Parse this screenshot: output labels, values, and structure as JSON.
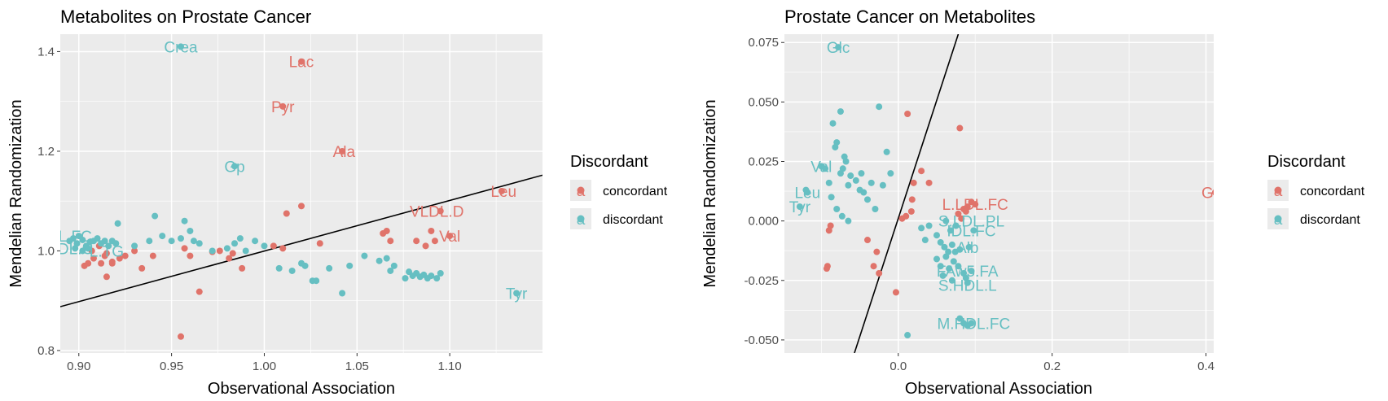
{
  "colors": {
    "concordant": "#E0736A",
    "discordant": "#66BFC2",
    "panel": "#EBEBEB",
    "grid": "#FFFFFF",
    "line": "#000000"
  },
  "legend": {
    "title": "Discordant",
    "items": [
      "concordant",
      "discordant"
    ]
  },
  "chart_data": [
    {
      "type": "scatter",
      "title": "Metabolites on Prostate Cancer",
      "xlabel": "Observational Association",
      "ylabel": "Mendelian Randomization",
      "xlim": [
        0.89,
        1.15
      ],
      "ylim": [
        0.795,
        1.435
      ],
      "xticks": [
        0.9,
        0.95,
        1.0,
        1.05,
        1.1
      ],
      "xtick_labels": [
        "0.90",
        "0.95",
        "1.00",
        "1.05",
        "1.10"
      ],
      "yticks": [
        0.8,
        1.0,
        1.2,
        1.4
      ],
      "ytick_labels": [
        "0.8",
        "1.0",
        "1.2",
        "1.4"
      ],
      "grid": true,
      "legend_position": "right",
      "line": {
        "x": [
          0.89,
          1.15
        ],
        "y": [
          0.888,
          1.152
        ]
      },
      "labels": [
        {
          "text": "Crea",
          "x": 0.955,
          "y": 1.41,
          "group": "discordant"
        },
        {
          "text": "Lac",
          "x": 1.02,
          "y": 1.38,
          "group": "concordant"
        },
        {
          "text": "Pyr",
          "x": 1.01,
          "y": 1.29,
          "group": "concordant"
        },
        {
          "text": "Ala",
          "x": 1.043,
          "y": 1.2,
          "group": "concordant"
        },
        {
          "text": "Gp",
          "x": 0.984,
          "y": 1.17,
          "group": "discordant"
        },
        {
          "text": "Leu",
          "x": 1.129,
          "y": 1.12,
          "group": "concordant"
        },
        {
          "text": "VLDL.D",
          "x": 1.093,
          "y": 1.08,
          "group": "concordant"
        },
        {
          "text": "Val",
          "x": 1.1,
          "y": 1.03,
          "group": "concordant"
        },
        {
          "text": "Tyr",
          "x": 1.136,
          "y": 0.915,
          "group": "discordant"
        },
        {
          "text": "DL.FC",
          "x": 0.895,
          "y": 1.03,
          "group": "discordant"
        },
        {
          "text": "IDL.C",
          "x": 0.897,
          "y": 1.005,
          "group": "discordant"
        },
        {
          "text": "L.TG",
          "x": 0.915,
          "y": 1.0,
          "group": "discordant"
        }
      ],
      "series": [
        {
          "name": "concordant",
          "points": [
            [
              0.955,
              0.828
            ],
            [
              0.965,
              0.918
            ],
            [
              0.915,
              0.948
            ],
            [
              0.918,
              0.975
            ],
            [
              0.922,
              0.985
            ],
            [
              0.925,
              0.99
            ],
            [
              0.93,
              1.0
            ],
            [
              0.934,
              0.965
            ],
            [
              0.94,
              0.99
            ],
            [
              0.957,
              1.005
            ],
            [
              0.96,
              0.99
            ],
            [
              0.972,
              0.998
            ],
            [
              0.976,
              1.0
            ],
            [
              0.981,
              0.985
            ],
            [
              0.983,
              0.995
            ],
            [
              0.988,
              0.965
            ],
            [
              1.005,
              1.01
            ],
            [
              1.01,
              1.005
            ],
            [
              1.012,
              1.075
            ],
            [
              1.02,
              1.09
            ],
            [
              1.03,
              1.015
            ],
            [
              1.042,
              1.2
            ],
            [
              1.064,
              1.035
            ],
            [
              1.066,
              1.04
            ],
            [
              1.068,
              1.02
            ],
            [
              1.082,
              1.02
            ],
            [
              1.087,
              1.01
            ],
            [
              1.09,
              1.04
            ],
            [
              1.092,
              1.02
            ],
            [
              1.01,
              1.29
            ],
            [
              1.02,
              1.38
            ],
            [
              1.095,
              1.08
            ],
            [
              1.128,
              1.12
            ],
            [
              1.1,
              1.03
            ],
            [
              0.905,
              0.975
            ],
            [
              0.908,
              0.985
            ],
            [
              0.912,
              0.975
            ],
            [
              0.915,
              0.995
            ],
            [
              0.918,
              0.978
            ],
            [
              0.907,
              1.0
            ],
            [
              0.911,
              1.01
            ],
            [
              0.914,
              0.99
            ],
            [
              0.903,
              0.97
            ]
          ]
        },
        {
          "name": "discordant",
          "points": [
            [
              0.955,
              1.41
            ],
            [
              0.984,
              1.17
            ],
            [
              0.921,
              1.055
            ],
            [
              0.93,
              1.01
            ],
            [
              0.938,
              1.02
            ],
            [
              0.941,
              1.07
            ],
            [
              0.945,
              1.03
            ],
            [
              0.95,
              1.02
            ],
            [
              0.955,
              1.025
            ],
            [
              0.957,
              1.06
            ],
            [
              0.96,
              1.04
            ],
            [
              0.962,
              1.02
            ],
            [
              0.965,
              1.015
            ],
            [
              0.972,
              1.0
            ],
            [
              0.98,
              1.005
            ],
            [
              0.984,
              1.015
            ],
            [
              0.987,
              1.025
            ],
            [
              0.99,
              1.0
            ],
            [
              0.995,
              1.02
            ],
            [
              1.0,
              1.01
            ],
            [
              1.008,
              0.965
            ],
            [
              1.015,
              0.96
            ],
            [
              1.02,
              0.975
            ],
            [
              1.022,
              0.97
            ],
            [
              1.026,
              0.94
            ],
            [
              1.028,
              0.94
            ],
            [
              1.035,
              0.965
            ],
            [
              1.042,
              0.915
            ],
            [
              1.046,
              0.97
            ],
            [
              1.054,
              0.99
            ],
            [
              1.062,
              0.98
            ],
            [
              1.066,
              0.985
            ],
            [
              1.068,
              0.96
            ],
            [
              1.07,
              0.97
            ],
            [
              1.076,
              0.945
            ],
            [
              1.078,
              0.958
            ],
            [
              1.08,
              0.95
            ],
            [
              1.082,
              0.955
            ],
            [
              1.084,
              0.948
            ],
            [
              1.086,
              0.952
            ],
            [
              1.088,
              0.945
            ],
            [
              1.09,
              0.95
            ],
            [
              1.093,
              0.945
            ],
            [
              1.095,
              0.955
            ],
            [
              1.136,
              0.915
            ],
            [
              0.895,
              1.02
            ],
            [
              0.897,
              1.025
            ],
            [
              0.899,
              1.015
            ],
            [
              0.9,
              1.03
            ],
            [
              0.902,
              1.022
            ],
            [
              0.904,
              1.01
            ],
            [
              0.906,
              1.018
            ],
            [
              0.908,
              1.02
            ],
            [
              0.91,
              1.025
            ],
            [
              0.912,
              1.015
            ],
            [
              0.914,
              1.02
            ],
            [
              0.916,
              1.01
            ],
            [
              0.918,
              1.02
            ],
            [
              0.92,
              1.015
            ],
            [
              0.898,
              1.005
            ],
            [
              0.902,
              1.0
            ],
            [
              0.905,
              1.005
            ]
          ]
        }
      ]
    },
    {
      "type": "scatter",
      "title": "Prostate Cancer on Metabolites",
      "xlabel": "Observational Association",
      "ylabel": "Mendelian Randomization",
      "xlim": [
        -0.148,
        0.41
      ],
      "ylim": [
        -0.0555,
        0.0785
      ],
      "xticks": [
        0.0,
        0.2,
        0.4
      ],
      "xtick_labels": [
        "0.0",
        "0.2",
        "0.4"
      ],
      "yticks": [
        -0.05,
        -0.025,
        0.0,
        0.025,
        0.05,
        0.075
      ],
      "ytick_labels": [
        "-0.050",
        "-0.025",
        "0.000",
        "0.025",
        "0.050",
        "0.075"
      ],
      "grid": true,
      "legend_position": "right",
      "line": {
        "x": [
          -0.057,
          0.078
        ],
        "y": [
          -0.0555,
          0.0785
        ]
      },
      "labels": [
        {
          "text": "Glc",
          "x": -0.078,
          "y": 0.073,
          "group": "discordant"
        },
        {
          "text": "Val",
          "x": -0.1,
          "y": 0.023,
          "group": "discordant"
        },
        {
          "text": "Leu",
          "x": -0.118,
          "y": 0.012,
          "group": "discordant"
        },
        {
          "text": "Tyr",
          "x": -0.128,
          "y": 0.006,
          "group": "discordant"
        },
        {
          "text": "Glol",
          "x": 0.412,
          "y": 0.012,
          "group": "concordant"
        },
        {
          "text": "L.LDL.FC",
          "x": 0.1,
          "y": 0.007,
          "group": "concordant"
        },
        {
          "text": "S.LDL.PL",
          "x": 0.095,
          "y": 0.0,
          "group": "discordant"
        },
        {
          "text": "IDL.FC",
          "x": 0.095,
          "y": -0.004,
          "group": "discordant"
        },
        {
          "text": "Alb",
          "x": 0.09,
          "y": -0.011,
          "group": "discordant"
        },
        {
          "text": "FAw5.FA",
          "x": 0.09,
          "y": -0.021,
          "group": "discordant"
        },
        {
          "text": "S.HDL.L",
          "x": 0.09,
          "y": -0.027,
          "group": "discordant"
        },
        {
          "text": "M.HDL.FC",
          "x": 0.098,
          "y": -0.043,
          "group": "discordant"
        }
      ],
      "series": [
        {
          "name": "concordant",
          "points": [
            [
              0.012,
              0.045
            ],
            [
              0.08,
              0.039
            ],
            [
              0.04,
              0.016
            ],
            [
              0.03,
              0.021
            ],
            [
              0.02,
              0.016
            ],
            [
              0.01,
              0.002
            ],
            [
              0.005,
              0.001
            ],
            [
              0.018,
              0.009
            ],
            [
              0.017,
              0.004
            ],
            [
              -0.088,
              -0.002
            ],
            [
              -0.09,
              -0.004
            ],
            [
              -0.092,
              -0.019
            ],
            [
              -0.093,
              -0.02
            ],
            [
              -0.04,
              -0.008
            ],
            [
              -0.028,
              -0.013
            ],
            [
              -0.032,
              -0.019
            ],
            [
              -0.025,
              -0.022
            ],
            [
              -0.003,
              -0.03
            ],
            [
              0.078,
              0.003
            ],
            [
              0.085,
              0.005
            ],
            [
              0.088,
              0.004
            ],
            [
              0.09,
              0.006
            ],
            [
              0.095,
              0.008
            ],
            [
              0.1,
              0.007
            ],
            [
              0.082,
              0.001
            ],
            [
              0.412,
              0.012
            ]
          ]
        },
        {
          "name": "discordant",
          "points": [
            [
              -0.078,
              0.073
            ],
            [
              -0.075,
              0.046
            ],
            [
              -0.085,
              0.041
            ],
            [
              -0.08,
              0.033
            ],
            [
              -0.082,
              0.031
            ],
            [
              -0.07,
              0.027
            ],
            [
              -0.068,
              0.025
            ],
            [
              -0.072,
              0.022
            ],
            [
              -0.075,
              0.02
            ],
            [
              -0.062,
              0.019
            ],
            [
              -0.065,
              0.015
            ],
            [
              -0.055,
              0.017
            ],
            [
              -0.05,
              0.013
            ],
            [
              -0.048,
              0.02
            ],
            [
              -0.045,
              0.012
            ],
            [
              -0.04,
              0.009
            ],
            [
              -0.035,
              0.016
            ],
            [
              -0.03,
              0.005
            ],
            [
              -0.025,
              0.048
            ],
            [
              -0.02,
              0.015
            ],
            [
              -0.015,
              0.029
            ],
            [
              -0.01,
              0.02
            ],
            [
              -0.095,
              0.022
            ],
            [
              -0.1,
              0.023
            ],
            [
              -0.09,
              0.016
            ],
            [
              -0.087,
              0.01
            ],
            [
              -0.08,
              0.005
            ],
            [
              -0.073,
              0.002
            ],
            [
              -0.065,
              0.0
            ],
            [
              -0.118,
              0.012
            ],
            [
              -0.128,
              0.006
            ],
            [
              -0.12,
              0.013
            ],
            [
              0.04,
              -0.002
            ],
            [
              0.05,
              -0.006
            ],
            [
              0.055,
              -0.009
            ],
            [
              0.06,
              -0.011
            ],
            [
              0.062,
              -0.0
            ],
            [
              0.065,
              -0.013
            ],
            [
              0.068,
              -0.004
            ],
            [
              0.07,
              -0.01
            ],
            [
              0.072,
              -0.017
            ],
            [
              0.075,
              -0.002
            ],
            [
              0.078,
              -0.019
            ],
            [
              0.08,
              -0.012
            ],
            [
              0.085,
              -0.022
            ],
            [
              0.088,
              -0.024
            ],
            [
              0.09,
              -0.026
            ],
            [
              0.092,
              -0.011
            ],
            [
              0.095,
              -0.021
            ],
            [
              0.098,
              -0.004
            ],
            [
              0.05,
              -0.016
            ],
            [
              0.055,
              -0.019
            ],
            [
              0.058,
              -0.023
            ],
            [
              0.062,
              -0.015
            ],
            [
              0.066,
              -0.02
            ],
            [
              0.07,
              -0.025
            ],
            [
              0.074,
              -0.013
            ],
            [
              0.08,
              -0.041
            ],
            [
              0.085,
              -0.043
            ],
            [
              0.09,
              -0.044
            ],
            [
              0.095,
              -0.043
            ],
            [
              0.012,
              -0.048
            ],
            [
              0.03,
              -0.003
            ],
            [
              0.035,
              -0.008
            ]
          ]
        }
      ]
    }
  ]
}
